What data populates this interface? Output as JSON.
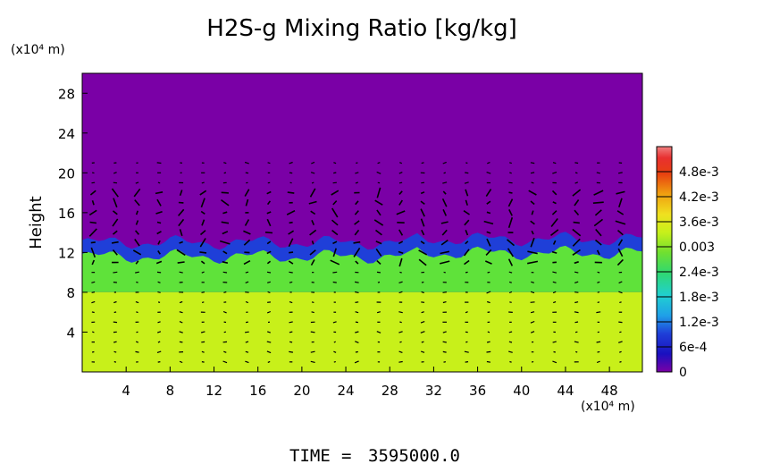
{
  "chart_data": {
    "type": "heatmap",
    "title": "H2S-g Mixing Ratio [kg/kg]",
    "ylabel": "Height",
    "y_unit_label": "(x10⁴ m)",
    "x_unit_label": "(x10⁴ m)",
    "xlim": [
      0,
      51
    ],
    "ylim": [
      0,
      30
    ],
    "x_ticks": [
      "4",
      "8",
      "12",
      "16",
      "20",
      "24",
      "28",
      "32",
      "36",
      "40",
      "44",
      "48"
    ],
    "y_ticks": [
      "4",
      "8",
      "12",
      "16",
      "20",
      "24",
      "28"
    ],
    "x_tick_values": [
      4,
      8,
      12,
      16,
      20,
      24,
      28,
      32,
      36,
      40,
      44,
      48
    ],
    "y_tick_values": [
      4,
      8,
      12,
      16,
      20,
      24,
      28
    ],
    "colorbar": {
      "labels": [
        "4.8e-3",
        "4.2e-3",
        "3.6e-3",
        "0.003",
        "2.4e-3",
        "1.8e-3",
        "1.2e-3",
        "6e-4",
        "0"
      ],
      "values": [
        0.0048,
        0.0042,
        0.0036,
        0.003,
        0.0024,
        0.0018,
        0.0012,
        0.0006,
        0
      ],
      "range": [
        0,
        0.0054
      ]
    },
    "fields": {
      "upper_region": {
        "y_range": [
          13,
          30
        ],
        "value": 0,
        "color": "#7a00a6"
      },
      "transition_layer": {
        "y_range": [
          11.5,
          13
        ],
        "value": 0.0009,
        "color": "#1f3fd8"
      },
      "middle_region": {
        "y_range": [
          8,
          12
        ],
        "value": 0.0027,
        "color": "#5fe23a"
      },
      "lower_region": {
        "y_range": [
          0,
          8
        ],
        "value": 0.0033,
        "color": "#c8f01a"
      }
    },
    "wind_vectors": true,
    "colors": {
      "background": "#7a00a6",
      "interface": "#1f3fd8",
      "green": "#5fe23a",
      "yellow": "#c8f01a",
      "vectors": "#000000"
    }
  },
  "footer": {
    "time_label": "TIME",
    "time_eq": "=",
    "time_value": "3595000.0"
  }
}
